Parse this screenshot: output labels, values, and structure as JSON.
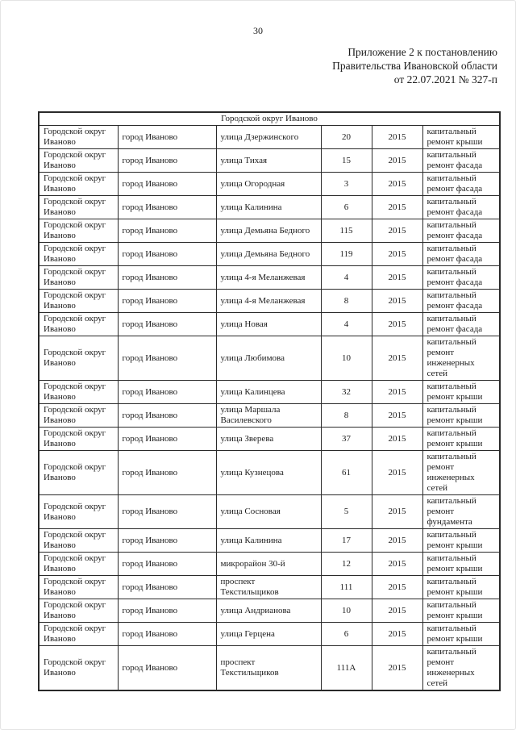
{
  "page": {
    "number": "30",
    "annex": {
      "line1": "Приложение 2 к постановлению",
      "line2": "Правительства Ивановской области",
      "line3": "от 22.07.2021 № 327-п"
    }
  },
  "table": {
    "group_header": "Городской округ Иваново",
    "rows": [
      {
        "municipality": "Городской округ\nИваново",
        "city": "город Иваново",
        "street": "улица Дзержинского",
        "house": "20",
        "year": "2015",
        "work": "капитальный\nремонт крыши"
      },
      {
        "municipality": "Городской округ\nИваново",
        "city": "город Иваново",
        "street": "улица Тихая",
        "house": "15",
        "year": "2015",
        "work": "капитальный\nремонт фасада"
      },
      {
        "municipality": "Городской округ\nИваново",
        "city": "город Иваново",
        "street": "улица Огородная",
        "house": "3",
        "year": "2015",
        "work": "капитальный\nремонт фасада"
      },
      {
        "municipality": "Городской округ\nИваново",
        "city": "город Иваново",
        "street": "улица Калинина",
        "house": "6",
        "year": "2015",
        "work": "капитальный\nремонт фасада"
      },
      {
        "municipality": "Городской округ\nИваново",
        "city": "город Иваново",
        "street": "улица Демьяна Бедного",
        "house": "115",
        "year": "2015",
        "work": "капитальный\nремонт фасада"
      },
      {
        "municipality": "Городской округ\nИваново",
        "city": "город Иваново",
        "street": "улица Демьяна Бедного",
        "house": "119",
        "year": "2015",
        "work": "капитальный\nремонт фасада"
      },
      {
        "municipality": "Городской округ\nИваново",
        "city": "город Иваново",
        "street": "улица 4-я Меланжевая",
        "house": "4",
        "year": "2015",
        "work": "капитальный\nремонт фасада"
      },
      {
        "municipality": "Городской округ\nИваново",
        "city": "город Иваново",
        "street": "улица 4-я Меланжевая",
        "house": "8",
        "year": "2015",
        "work": "капитальный\nремонт фасада"
      },
      {
        "municipality": "Городской округ\nИваново",
        "city": "город Иваново",
        "street": "улица Новая",
        "house": "4",
        "year": "2015",
        "work": "капитальный\nремонт фасада"
      },
      {
        "municipality": "Городской округ\nИваново",
        "city": "город Иваново",
        "street": "улица Любимова",
        "house": "10",
        "year": "2015",
        "work": "капитальный\nремонт\nинженерных\nсетей"
      },
      {
        "municipality": "Городской округ\nИваново",
        "city": "город Иваново",
        "street": "улица Калинцева",
        "house": "32",
        "year": "2015",
        "work": "капитальный\nремонт крыши"
      },
      {
        "municipality": "Городской округ\nИваново",
        "city": "город Иваново",
        "street": "улица Маршала\nВасилевского",
        "house": "8",
        "year": "2015",
        "work": "капитальный\nремонт крыши"
      },
      {
        "municipality": "Городской округ\nИваново",
        "city": "город Иваново",
        "street": "улица Зверева",
        "house": "37",
        "year": "2015",
        "work": "капитальный\nремонт крыши"
      },
      {
        "municipality": "Городской округ\nИваново",
        "city": "город Иваново",
        "street": "улица Кузнецова",
        "house": "61",
        "year": "2015",
        "work": "капитальный\nремонт\nинженерных\nсетей"
      },
      {
        "municipality": "Городской округ\nИваново",
        "city": "город Иваново",
        "street": "улица Сосновая",
        "house": "5",
        "year": "2015",
        "work": "капитальный\nремонт\nфундамента"
      },
      {
        "municipality": "Городской округ\nИваново",
        "city": "город Иваново",
        "street": "улица Калинина",
        "house": "17",
        "year": "2015",
        "work": "капитальный\nремонт крыши"
      },
      {
        "municipality": "Городской округ\nИваново",
        "city": "город Иваново",
        "street": "микрорайон 30-й",
        "house": "12",
        "year": "2015",
        "work": "капитальный\nремонт крыши"
      },
      {
        "municipality": "Городской округ\nИваново",
        "city": "город Иваново",
        "street": "проспект\nТекстильщиков",
        "house": "111",
        "year": "2015",
        "work": "капитальный\nремонт крыши"
      },
      {
        "municipality": "Городской округ\nИваново",
        "city": "город Иваново",
        "street": "улица Андрианова",
        "house": "10",
        "year": "2015",
        "work": "капитальный\nремонт крыши"
      },
      {
        "municipality": "Городской округ\nИваново",
        "city": "город Иваново",
        "street": "улица Герцена",
        "house": "6",
        "year": "2015",
        "work": "капитальный\nремонт крыши"
      },
      {
        "municipality": "Городской округ\nИваново",
        "city": "город Иваново",
        "street": "проспект\nТекстильщиков",
        "house": "111А",
        "year": "2015",
        "work": "капитальный\nремонт\nинженерных\nсетей"
      }
    ]
  }
}
